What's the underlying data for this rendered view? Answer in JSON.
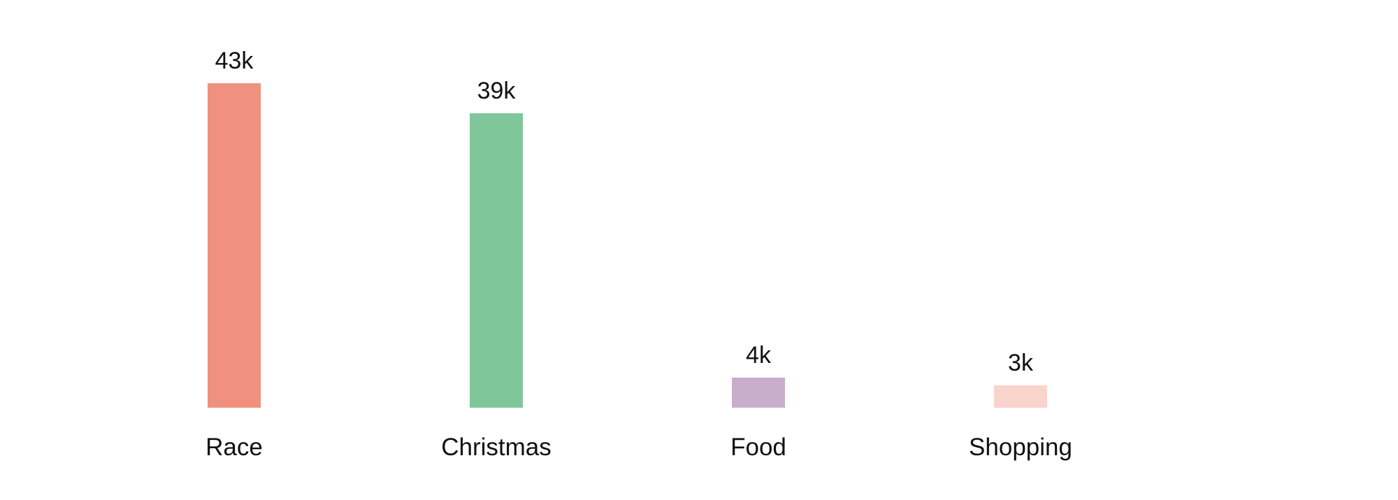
{
  "chart_data": {
    "type": "bar",
    "title": "",
    "xlabel": "",
    "ylabel": "",
    "categories": [
      "Race",
      "Christmas",
      "Food",
      "Shopping"
    ],
    "values": [
      43,
      39,
      4,
      3
    ],
    "value_labels": [
      "43k",
      "39k",
      "4k",
      "3k"
    ],
    "unit": "k",
    "ylim": [
      0,
      46
    ],
    "grid": false,
    "axes_visible": false,
    "legend": "none",
    "background_color": "#ffffff",
    "label_color": "#111111",
    "bar_colors": [
      "#f0917f",
      "#7fc69b",
      "#c8aecb",
      "#f9d4cd"
    ]
  }
}
